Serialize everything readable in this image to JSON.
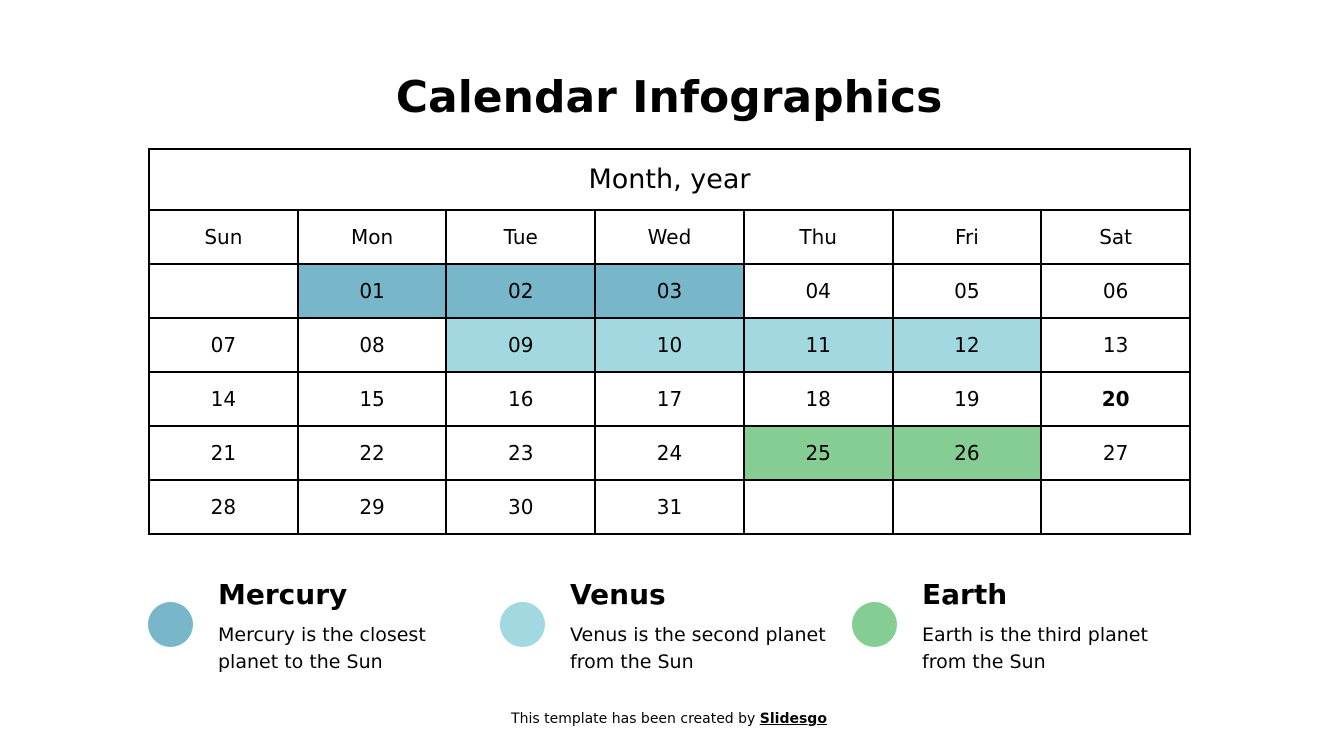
{
  "header": {
    "title": "Calendar Infographics"
  },
  "table": {
    "caption": "Month, year",
    "days": [
      "Sun",
      "Mon",
      "Tue",
      "Wed",
      "Thu",
      "Fri",
      "Sat"
    ],
    "rows": [
      [
        null,
        {
          "text": "01",
          "color": "#78b7c9"
        },
        {
          "text": "02",
          "color": "#78b7c9"
        },
        {
          "text": "03",
          "color": "#78b7c9"
        },
        {
          "text": "04"
        },
        {
          "text": "05"
        },
        {
          "text": "06"
        }
      ],
      [
        {
          "text": "07"
        },
        {
          "text": "08"
        },
        {
          "text": "09",
          "color": "#a2d8df"
        },
        {
          "text": "10",
          "color": "#a2d8df"
        },
        {
          "text": "11",
          "color": "#a2d8df"
        },
        {
          "text": "12",
          "color": "#a2d8df"
        },
        {
          "text": "13"
        }
      ],
      [
        {
          "text": "14"
        },
        {
          "text": "15"
        },
        {
          "text": "16"
        },
        {
          "text": "17"
        },
        {
          "text": "18"
        },
        {
          "text": "19"
        },
        {
          "text": "20",
          "bold": true
        }
      ],
      [
        {
          "text": "21"
        },
        {
          "text": "22"
        },
        {
          "text": "23"
        },
        {
          "text": "24"
        },
        {
          "text": "25",
          "color": "#86cd93"
        },
        {
          "text": "26",
          "color": "#86cd93"
        },
        {
          "text": "27"
        }
      ],
      [
        {
          "text": "28"
        },
        {
          "text": "29"
        },
        {
          "text": "30"
        },
        {
          "text": "31"
        },
        null,
        null,
        null
      ]
    ]
  },
  "legend": [
    {
      "title": "Mercury",
      "text": "Mercury is the closest planet to the Sun",
      "color": "#78b7c9"
    },
    {
      "title": "Venus",
      "text": "Venus is the second planet from the Sun",
      "color": "#a2d8df"
    },
    {
      "title": "Earth",
      "text": "Earth is the third planet from the Sun",
      "color": "#86cd93"
    }
  ],
  "footer": {
    "text": "This template has been created by",
    "link": "Slidesgo"
  }
}
